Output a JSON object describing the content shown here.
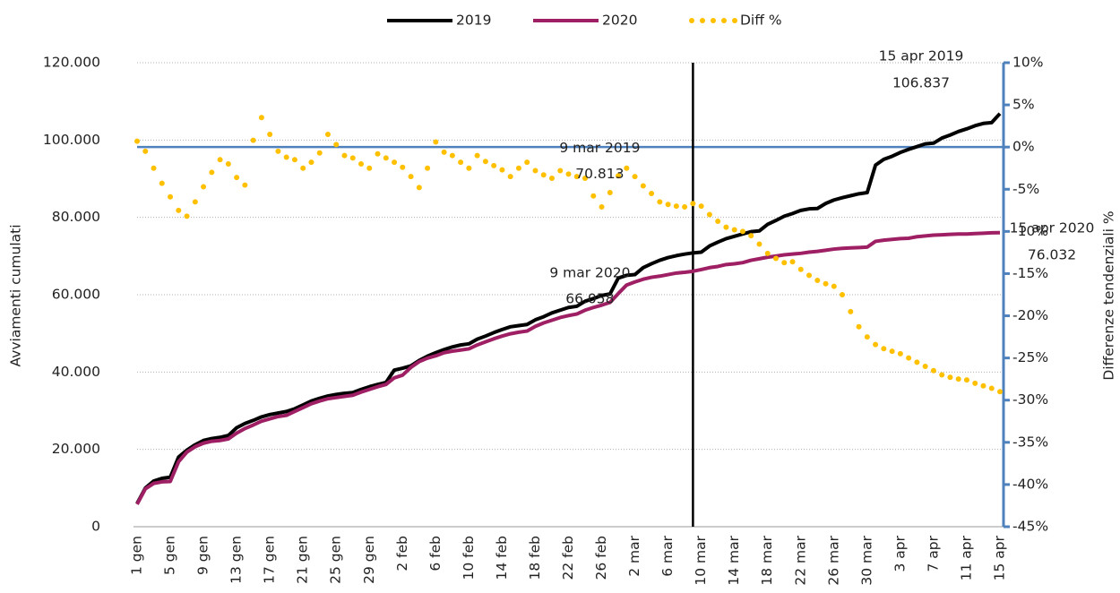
{
  "chart_data": {
    "type": "line",
    "y_label": "Avviamenti cumulati",
    "y2_label": "Differenze tendenziali %",
    "categories": [
      "1 gen",
      null,
      null,
      null,
      "5 gen",
      null,
      null,
      null,
      "9 gen",
      null,
      null,
      null,
      "13 gen",
      null,
      null,
      null,
      "17 gen",
      null,
      null,
      null,
      "21 gen",
      null,
      null,
      null,
      "25 gen",
      null,
      null,
      null,
      "29 gen",
      null,
      null,
      null,
      "2 feb",
      null,
      null,
      null,
      "6 feb",
      null,
      null,
      null,
      "10 feb",
      null,
      null,
      null,
      "14 feb",
      null,
      null,
      null,
      "18 feb",
      null,
      null,
      null,
      "22 feb",
      null,
      null,
      null,
      "26 feb",
      null,
      null,
      null,
      "2 mar",
      null,
      null,
      null,
      "6 mar",
      null,
      null,
      null,
      "10 mar",
      null,
      null,
      null,
      "14 mar",
      null,
      null,
      null,
      "18 mar",
      null,
      null,
      null,
      "22 mar",
      null,
      null,
      null,
      "26 mar",
      null,
      null,
      null,
      "30 mar",
      null,
      null,
      null,
      "3 apr",
      null,
      null,
      null,
      "7 apr",
      null,
      null,
      null,
      "11 apr",
      null,
      null,
      null,
      "15 apr"
    ],
    "series": [
      {
        "name": "2019",
        "color": "#000000",
        "style": "line",
        "values": [
          6000,
          10000,
          11800,
          12500,
          12800,
          18000,
          19800,
          21200,
          22300,
          22800,
          23100,
          23600,
          25600,
          26700,
          27500,
          28400,
          29000,
          29400,
          29800,
          30500,
          31500,
          32500,
          33200,
          33800,
          34200,
          34500,
          34700,
          35500,
          36200,
          36800,
          37300,
          40500,
          41000,
          41600,
          43000,
          44100,
          45000,
          45800,
          46500,
          47000,
          47300,
          48500,
          49300,
          50200,
          51000,
          51700,
          52000,
          52300,
          53500,
          54300,
          55300,
          56000,
          56700,
          57000,
          58300,
          59000,
          59800,
          60200,
          64300,
          65000,
          65200,
          67000,
          68000,
          68900,
          69600,
          70100,
          70500,
          70813,
          71000,
          72600,
          73600,
          74500,
          75100,
          75700,
          76300,
          76500,
          78200,
          79200,
          80300,
          81000,
          81800,
          82200,
          82300,
          83600,
          84500,
          85100,
          85600,
          86100,
          86400,
          93500,
          95000,
          95800,
          96800,
          97600,
          98300,
          99000,
          99200,
          100500,
          101300,
          102200,
          102900,
          103700,
          104300,
          104500,
          106837
        ]
      },
      {
        "name": "2020",
        "color": "#9e1f63",
        "style": "line",
        "values": [
          5800,
          9800,
          11200,
          11600,
          11700,
          16800,
          19300,
          20700,
          21600,
          22100,
          22300,
          22700,
          24200,
          25400,
          26300,
          27300,
          27900,
          28500,
          28800,
          29800,
          30800,
          31800,
          32500,
          33100,
          33400,
          33700,
          34000,
          34800,
          35500,
          36200,
          36800,
          38500,
          39200,
          41200,
          42700,
          43600,
          44200,
          45000,
          45400,
          45700,
          46000,
          47000,
          47800,
          48600,
          49300,
          49900,
          50300,
          50600,
          51800,
          52700,
          53400,
          54100,
          54600,
          55000,
          56000,
          56700,
          57300,
          58000,
          60300,
          62500,
          63300,
          64000,
          64500,
          64800,
          65200,
          65600,
          65800,
          66058,
          66500,
          67000,
          67300,
          67800,
          68000,
          68300,
          68900,
          69300,
          69700,
          70000,
          70300,
          70500,
          70700,
          71000,
          71200,
          71500,
          71800,
          72000,
          72100,
          72200,
          72300,
          73800,
          74100,
          74300,
          74500,
          74600,
          75000,
          75200,
          75400,
          75500,
          75600,
          75700,
          75700,
          75800,
          75900,
          76000,
          76032
        ]
      },
      {
        "name": "Diff %",
        "color": "#ffc000",
        "style": "dots",
        "axis": "y2",
        "values": [
          0.7,
          -0.5,
          -2.5,
          -4.3,
          -5.9,
          -7.5,
          -8.2,
          -6.5,
          -4.7,
          -3.0,
          -1.5,
          -2.0,
          -3.6,
          -4.5,
          0.8,
          3.5,
          1.5,
          -0.5,
          -1.2,
          -1.5,
          -2.5,
          -1.8,
          -0.7,
          1.5,
          0.3,
          -1.0,
          -1.3,
          -2.0,
          -2.5,
          -0.8,
          -1.3,
          -1.8,
          -2.4,
          -3.5,
          -4.8,
          -2.5,
          0.6,
          -0.6,
          -1.0,
          -1.8,
          -2.5,
          -1.0,
          -1.7,
          -2.2,
          -2.7,
          -3.5,
          -2.5,
          -1.8,
          -2.8,
          -3.3,
          -3.7,
          -2.8,
          -3.2,
          -3.5,
          -3.7,
          -5.8,
          -7.1,
          -5.4,
          -3.4,
          -2.5,
          -3.5,
          -4.6,
          -5.5,
          -6.5,
          -6.8,
          -7.0,
          -7.1,
          -6.7,
          -7.0,
          -8.0,
          -8.8,
          -9.5,
          -9.8,
          -10.0,
          -10.5,
          -11.5,
          -12.6,
          -13.2,
          -13.7,
          -13.6,
          -14.5,
          -15.2,
          -15.8,
          -16.2,
          -16.5,
          -17.5,
          -19.5,
          -21.3,
          -22.5,
          -23.4,
          -23.9,
          -24.2,
          -24.5,
          -25.0,
          -25.5,
          -26.0,
          -26.5,
          -27.0,
          -27.3,
          -27.5,
          -27.6,
          -28.0,
          -28.3,
          -28.6,
          -29.0
        ]
      }
    ],
    "ylim": [
      0,
      120000
    ],
    "yticks": [
      0,
      {
        "value": 20000,
        "label": "20.000"
      },
      {
        "value": 40000,
        "label": "40.000"
      },
      {
        "value": 60000,
        "label": "60.000"
      },
      {
        "value": 80000,
        "label": "80.000"
      },
      {
        "value": 100000,
        "label": "100.000"
      },
      {
        "value": 120000,
        "label": "120.000"
      }
    ],
    "y2lim": [
      -45,
      10
    ],
    "y2ticks": [
      {
        "value": -45,
        "label": "-45%"
      },
      {
        "value": -40,
        "label": "-40%"
      },
      {
        "value": -35,
        "label": "-35%"
      },
      {
        "value": -30,
        "label": "-30%"
      },
      {
        "value": -25,
        "label": "-25%"
      },
      {
        "value": -20,
        "label": "-20%"
      },
      {
        "value": -15,
        "label": "-15%"
      },
      {
        "value": -10,
        "label": "-10%"
      },
      {
        "value": -5,
        "label": "-5%"
      },
      {
        "value": 0,
        "label": "0%"
      },
      {
        "value": 5,
        "label": "5%"
      },
      {
        "value": 10,
        "label": "10%"
      }
    ],
    "y2_color": "#4f81bd",
    "y2_reference_line": 0,
    "vline_index": 67,
    "grid": true,
    "legend": "top",
    "annotations": [
      {
        "text": "9 mar 2019",
        "label": "70.813",
        "series": 0,
        "index": 67
      },
      {
        "text": "9 mar 2020",
        "label": "66.058",
        "series": 1,
        "index": 67
      },
      {
        "text": "15 apr 2019",
        "label": "106.837",
        "series": 0,
        "index": 104
      },
      {
        "text": "15 apr 2020",
        "label": "76.032",
        "series": 1,
        "index": 104
      }
    ]
  }
}
